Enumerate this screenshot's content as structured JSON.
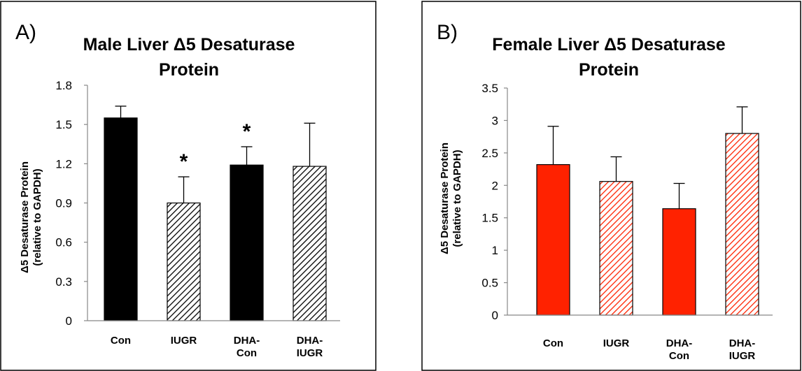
{
  "chart_data": [
    {
      "type": "bar",
      "panel_label": "A)",
      "title": [
        "Male Liver Δ5 Desaturase",
        "Protein"
      ],
      "ylabel": [
        "Δ5 Desaturase Protein",
        "(relative to GAPDH)"
      ],
      "xlabel": "",
      "categories": [
        [
          "Con"
        ],
        [
          "IUGR"
        ],
        [
          "DHA-",
          "Con"
        ],
        [
          "DHA-",
          "IUGR"
        ]
      ],
      "values": [
        1.55,
        0.9,
        1.19,
        1.18
      ],
      "errors": [
        0.09,
        0.2,
        0.14,
        0.33
      ],
      "significance": [
        "",
        "*",
        "*",
        ""
      ],
      "fill": [
        "solid",
        "hatched",
        "solid",
        "hatched"
      ],
      "color": "#000000",
      "ylim": [
        0,
        1.8
      ],
      "yticks": [
        "0",
        "0.3",
        "0.6",
        "0.9",
        "1.2",
        "1.5",
        "1.8"
      ],
      "grid": false,
      "legend": "none"
    },
    {
      "type": "bar",
      "panel_label": "B)",
      "title": [
        "Female Liver Δ5 Desaturase",
        "Protein"
      ],
      "ylabel": [
        "Δ5 Desaturase Protein",
        "(relative to GAPDH)"
      ],
      "xlabel": "",
      "categories": [
        [
          "Con"
        ],
        [
          "IUGR"
        ],
        [
          "DHA-",
          "Con"
        ],
        [
          "DHA-",
          "IUGR"
        ]
      ],
      "values": [
        2.32,
        2.06,
        1.64,
        2.8
      ],
      "errors": [
        0.59,
        0.38,
        0.39,
        0.41
      ],
      "significance": [
        "",
        "",
        "",
        ""
      ],
      "fill": [
        "solid",
        "hatched",
        "solid",
        "hatched"
      ],
      "color": "#ff2200",
      "ylim": [
        0,
        3.5
      ],
      "yticks": [
        "0",
        "0.5",
        "1",
        "1.5",
        "2",
        "2.5",
        "3",
        "3.5"
      ],
      "grid": false,
      "legend": "none"
    }
  ]
}
